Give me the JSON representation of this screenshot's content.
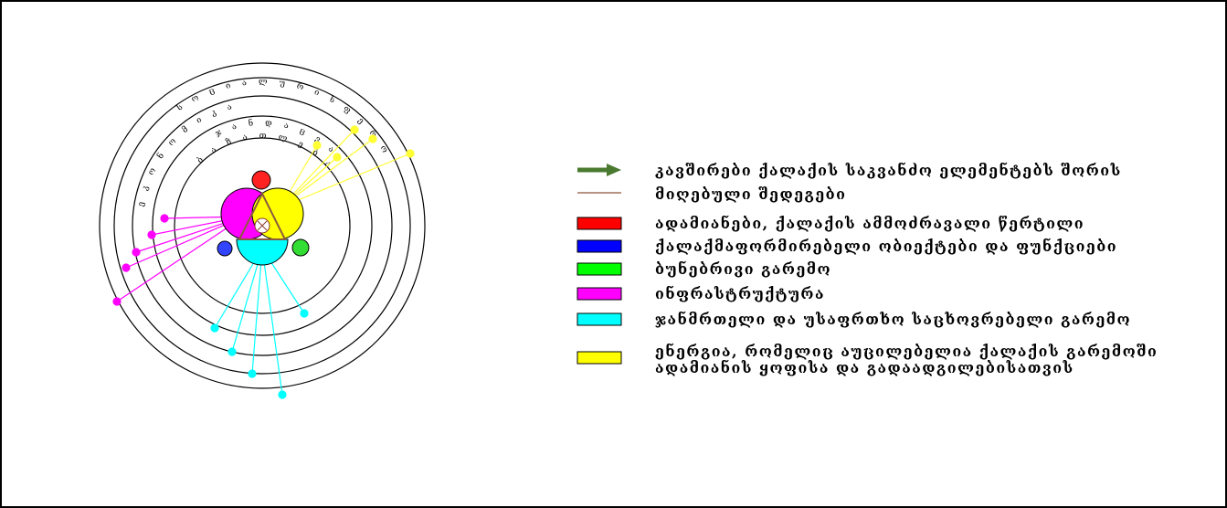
{
  "rings": [
    "ბ ა ზ ა თ ლ ე ბ ა",
    "ჯ ა ნ დ ა ც ვ ა",
    "ე კ ო ნ ო მ ი კ ა",
    "ს ო ც ი ა ლ უ რ ი ს ფ ე რ ო"
  ],
  "legend": {
    "links": "კავშირები ქალაქის საკვანძო ელემენტებს შორის",
    "results": "მიღებული შედეგები",
    "items": [
      {
        "color": "#ff0000",
        "lines": [
          "ადამიანები, ქალაქის ამმოძრავალი წერტილი"
        ]
      },
      {
        "color": "#0000ff",
        "lines": [
          "ქალაქმაფორმირებელი ობიექტები და ფუნქციები"
        ]
      },
      {
        "color": "#00ff00",
        "lines": [
          "ბუნებრივი გარემო"
        ]
      },
      {
        "color": "#ff00ff",
        "lines": [
          "ინფრასტრუქტურა"
        ]
      },
      {
        "color": "#00ffff",
        "lines": [
          "ჯანმრთელი და უსაფრთხო საცხოვრებელი გარემო"
        ]
      },
      {
        "color": "#ffff00",
        "lines": [
          "ენერგია, რომელიც აუცილებელია ქალაქის გარემოში",
          "ადამიანის ყოფისა და გადაადგილებისათვის"
        ]
      }
    ]
  }
}
